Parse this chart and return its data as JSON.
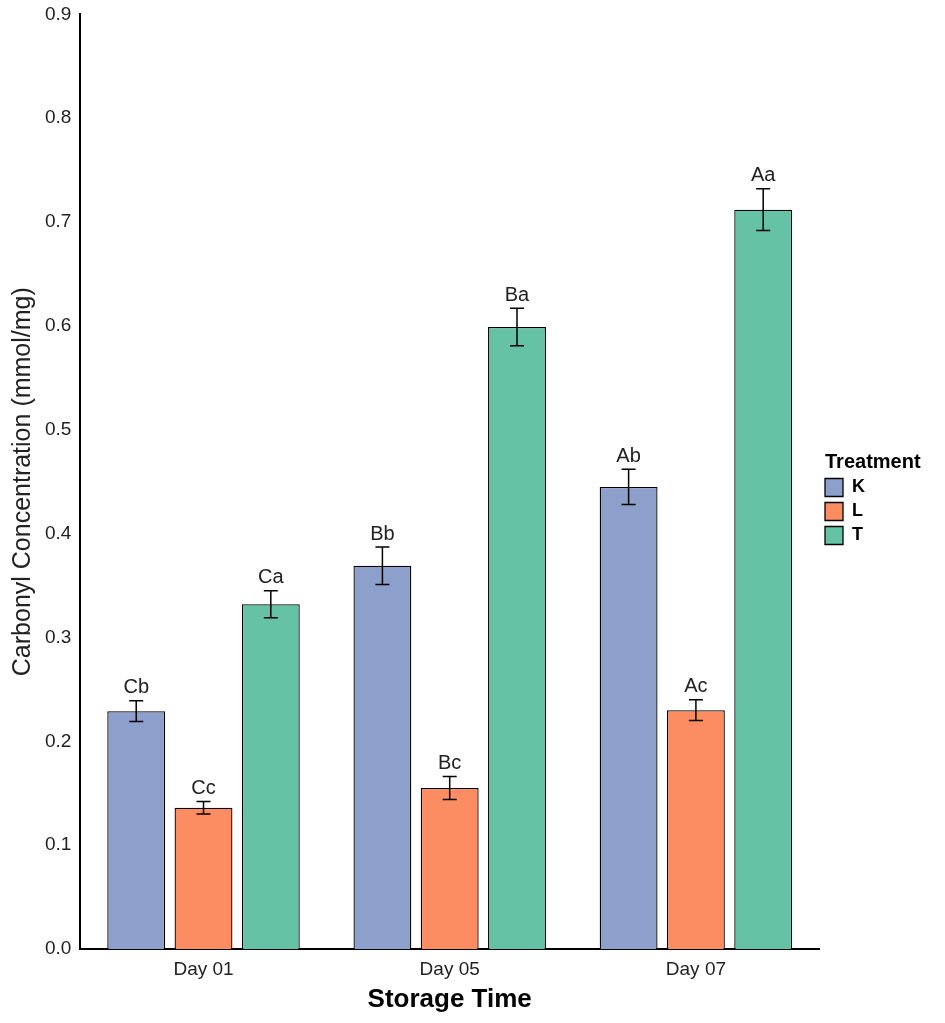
{
  "chart_data": {
    "type": "bar",
    "xlabel": "Storage Time",
    "ylabel": "Carbonyl Concentration (mmol/mg)",
    "legend_title": "Treatment",
    "legend": "right",
    "grid": false,
    "categories": [
      "Day 01",
      "Day 05",
      "Day 07"
    ],
    "series": [
      {
        "name": "K",
        "color": "#8da0cb",
        "values": [
          0.229,
          0.369,
          0.445
        ],
        "errors": [
          0.01,
          0.018,
          0.017
        ]
      },
      {
        "name": "L",
        "color": "#fc8d62",
        "values": [
          0.136,
          0.155,
          0.23
        ],
        "errors": [
          0.006,
          0.011,
          0.01
        ]
      },
      {
        "name": "T",
        "color": "#66c2a5",
        "values": [
          0.332,
          0.599,
          0.712
        ],
        "errors": [
          0.013,
          0.018,
          0.02
        ]
      }
    ],
    "ylim": [
      0,
      0.9
    ],
    "yticks": [
      {
        "value": 0,
        "label": "0.0"
      },
      0.1,
      0.2,
      0.3,
      0.4,
      0.5,
      0.6,
      0.7,
      0.8,
      0.9
    ],
    "annotations": [
      "Cb",
      "Cc",
      "Ca",
      "Bb",
      "Bc",
      "Ba",
      "Ab",
      "Ac",
      "Aa"
    ]
  }
}
